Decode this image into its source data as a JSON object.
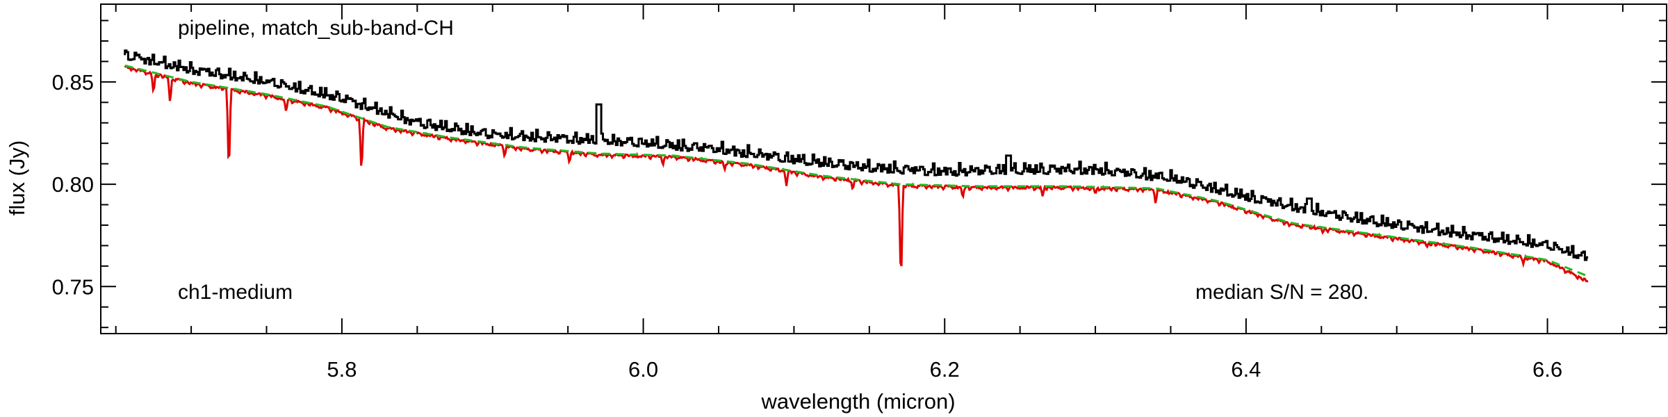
{
  "chart_data": {
    "type": "line",
    "title": "",
    "xlabel": "wavelength (micron)",
    "ylabel": "flux (Jy)",
    "xlim": [
      5.64,
      6.68
    ],
    "ylim": [
      0.727,
      0.888
    ],
    "x_ticks": [
      5.8,
      6.0,
      6.2,
      6.4,
      6.6
    ],
    "x_tick_labels": [
      "5.8",
      "6.0",
      "6.2",
      "6.4",
      "6.6"
    ],
    "y_ticks": [
      0.75,
      0.8,
      0.85
    ],
    "y_tick_labels": [
      "0.75",
      "0.80",
      "0.85"
    ],
    "grid": false,
    "annotations": {
      "top_left": "pipeline, match_sub-band-CH",
      "bottom_left": "ch1-medium",
      "bottom_right": "median S/N = 280."
    },
    "series": [
      {
        "color": "#000000",
        "style": "step",
        "continuum": [
          [
            5.656,
            0.861
          ],
          [
            5.7,
            0.854
          ],
          [
            5.75,
            0.848
          ],
          [
            5.8,
            0.84
          ],
          [
            5.85,
            0.828
          ],
          [
            5.9,
            0.822
          ],
          [
            5.95,
            0.82
          ],
          [
            6.0,
            0.818
          ],
          [
            6.05,
            0.815
          ],
          [
            6.1,
            0.81
          ],
          [
            6.15,
            0.806
          ],
          [
            6.2,
            0.804
          ],
          [
            6.25,
            0.805
          ],
          [
            6.3,
            0.805
          ],
          [
            6.35,
            0.801
          ],
          [
            6.4,
            0.792
          ],
          [
            6.45,
            0.784
          ],
          [
            6.5,
            0.778
          ],
          [
            6.55,
            0.773
          ],
          [
            6.6,
            0.768
          ],
          [
            6.627,
            0.762
          ]
        ],
        "emission_lines": [
          [
            5.971,
            0.839
          ],
          [
            6.243,
            0.814
          ],
          [
            6.443,
            0.793
          ]
        ]
      },
      {
        "color": "#e00000",
        "style": "line",
        "continuum": [
          [
            5.656,
            0.858
          ],
          [
            5.7,
            0.85
          ],
          [
            5.75,
            0.844
          ],
          [
            5.79,
            0.838
          ],
          [
            5.83,
            0.828
          ],
          [
            5.87,
            0.823
          ],
          [
            5.92,
            0.818
          ],
          [
            5.97,
            0.815
          ],
          [
            6.02,
            0.814
          ],
          [
            6.07,
            0.81
          ],
          [
            6.12,
            0.804
          ],
          [
            6.17,
            0.8
          ],
          [
            6.22,
            0.799
          ],
          [
            6.28,
            0.799
          ],
          [
            6.34,
            0.798
          ],
          [
            6.38,
            0.792
          ],
          [
            6.43,
            0.781
          ],
          [
            6.5,
            0.774
          ],
          [
            6.55,
            0.769
          ],
          [
            6.6,
            0.763
          ],
          [
            6.627,
            0.753
          ]
        ],
        "absorption_lines": [
          [
            5.675,
            0.844
          ],
          [
            5.686,
            0.839
          ],
          [
            5.725,
            0.803
          ],
          [
            5.763,
            0.835
          ],
          [
            5.813,
            0.804
          ],
          [
            5.908,
            0.813
          ],
          [
            5.951,
            0.81
          ],
          [
            6.013,
            0.809
          ],
          [
            6.054,
            0.807
          ],
          [
            6.095,
            0.799
          ],
          [
            6.139,
            0.797
          ],
          [
            6.171,
            0.748
          ],
          [
            6.212,
            0.793
          ],
          [
            6.265,
            0.794
          ],
          [
            6.3,
            0.795
          ],
          [
            6.34,
            0.79
          ],
          [
            6.451,
            0.776
          ],
          [
            6.52,
            0.769
          ],
          [
            6.584,
            0.761
          ]
        ]
      },
      {
        "color": "#22bb22",
        "style": "dashed",
        "continuum": [
          [
            5.656,
            0.858
          ],
          [
            5.7,
            0.85
          ],
          [
            5.75,
            0.844
          ],
          [
            5.79,
            0.838
          ],
          [
            5.83,
            0.828
          ],
          [
            5.87,
            0.823
          ],
          [
            5.92,
            0.818
          ],
          [
            5.97,
            0.815
          ],
          [
            6.02,
            0.814
          ],
          [
            6.07,
            0.81
          ],
          [
            6.12,
            0.804
          ],
          [
            6.17,
            0.8
          ],
          [
            6.22,
            0.799
          ],
          [
            6.28,
            0.799
          ],
          [
            6.34,
            0.798
          ],
          [
            6.38,
            0.792
          ],
          [
            6.43,
            0.781
          ],
          [
            6.5,
            0.774
          ],
          [
            6.55,
            0.769
          ],
          [
            6.6,
            0.763
          ],
          [
            6.627,
            0.755
          ]
        ]
      }
    ]
  }
}
